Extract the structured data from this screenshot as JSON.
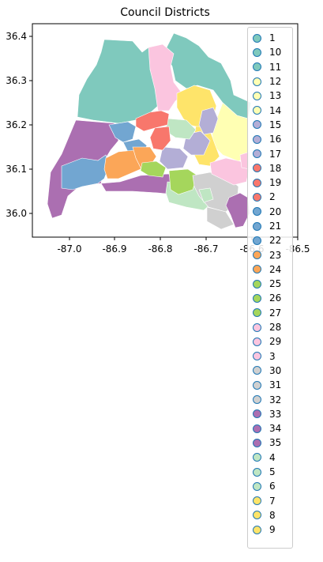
{
  "title": "Council Districts",
  "chart_data": {
    "type": "map",
    "xlim": [
      -87.08,
      -86.5
    ],
    "ylim": [
      35.95,
      36.43
    ],
    "x_ticks": [
      "-87.0",
      "-86.9",
      "-86.8",
      "-86.7",
      "-86.6",
      "-86.5"
    ],
    "y_ticks": [
      "36.0",
      "36.1",
      "36.2",
      "36.3",
      "36.4"
    ],
    "legend": [
      {
        "label": "1",
        "color": "#7fc9bd"
      },
      {
        "label": "10",
        "color": "#7fc9bd"
      },
      {
        "label": "11",
        "color": "#7fc9bd"
      },
      {
        "label": "12",
        "color": "#ffffb3"
      },
      {
        "label": "13",
        "color": "#ffffb3"
      },
      {
        "label": "14",
        "color": "#ffffb3"
      },
      {
        "label": "15",
        "color": "#b3aed6"
      },
      {
        "label": "16",
        "color": "#b3aed6"
      },
      {
        "label": "17",
        "color": "#b3aed6"
      },
      {
        "label": "18",
        "color": "#f8776c"
      },
      {
        "label": "19",
        "color": "#f8776c"
      },
      {
        "label": "2",
        "color": "#f8776c"
      },
      {
        "label": "20",
        "color": "#72a6d1"
      },
      {
        "label": "21",
        "color": "#72a6d1"
      },
      {
        "label": "22",
        "color": "#72a6d1"
      },
      {
        "label": "23",
        "color": "#fba658"
      },
      {
        "label": "24",
        "color": "#fba658"
      },
      {
        "label": "25",
        "color": "#a5d65c"
      },
      {
        "label": "26",
        "color": "#a5d65c"
      },
      {
        "label": "27",
        "color": "#a5d65c"
      },
      {
        "label": "28",
        "color": "#fbc5df"
      },
      {
        "label": "29",
        "color": "#fbc5df"
      },
      {
        "label": "3",
        "color": "#fbc5df"
      },
      {
        "label": "30",
        "color": "#d0d0d0"
      },
      {
        "label": "31",
        "color": "#d0d0d0"
      },
      {
        "label": "32",
        "color": "#d0d0d0"
      },
      {
        "label": "33",
        "color": "#ab6fb1"
      },
      {
        "label": "34",
        "color": "#ab6fb1"
      },
      {
        "label": "35",
        "color": "#ab6fb1"
      },
      {
        "label": "4",
        "color": "#bfe6c3"
      },
      {
        "label": "5",
        "color": "#bfe6c3"
      },
      {
        "label": "6",
        "color": "#bfe6c3"
      },
      {
        "label": "7",
        "color": "#fee46a"
      },
      {
        "label": "8",
        "color": "#fee46a"
      },
      {
        "label": "9",
        "color": "#fee46a"
      }
    ]
  }
}
